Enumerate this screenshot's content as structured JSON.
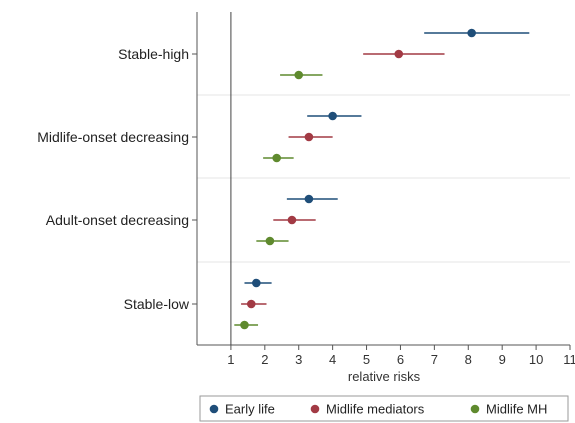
{
  "chart_data": {
    "type": "scatter",
    "subtype": "forest-plot-with-error-bars",
    "title": "",
    "xlabel": "relative risks",
    "ylabel": "",
    "xlim": [
      0,
      11
    ],
    "xticks": [
      1,
      2,
      3,
      4,
      5,
      6,
      7,
      8,
      9,
      10,
      11
    ],
    "reference_line": 1,
    "grid": "horizontal separators between groups",
    "legend": {
      "placement": "bottom"
    },
    "categories": [
      "Stable-high",
      "Midlife-onset decreasing",
      "Adult-onset decreasing",
      "Stable-low"
    ],
    "series": [
      {
        "name": "Early life",
        "color": "#1f4e79",
        "values": [
          8.1,
          4.0,
          3.3,
          1.75
        ],
        "ci_low": [
          6.7,
          3.25,
          2.65,
          1.4
        ],
        "ci_high": [
          9.8,
          4.85,
          4.15,
          2.2
        ]
      },
      {
        "name": "Midlife mediators",
        "color": "#a23a44",
        "values": [
          5.95,
          3.3,
          2.8,
          1.6
        ],
        "ci_low": [
          4.9,
          2.7,
          2.25,
          1.3
        ],
        "ci_high": [
          7.3,
          4.0,
          3.5,
          2.05
        ]
      },
      {
        "name": "Midlife MH",
        "color": "#5f8a2e",
        "values": [
          3.0,
          2.35,
          2.15,
          1.4
        ],
        "ci_low": [
          2.45,
          1.95,
          1.75,
          1.1
        ],
        "ci_high": [
          3.7,
          2.85,
          2.7,
          1.8
        ]
      }
    ]
  }
}
